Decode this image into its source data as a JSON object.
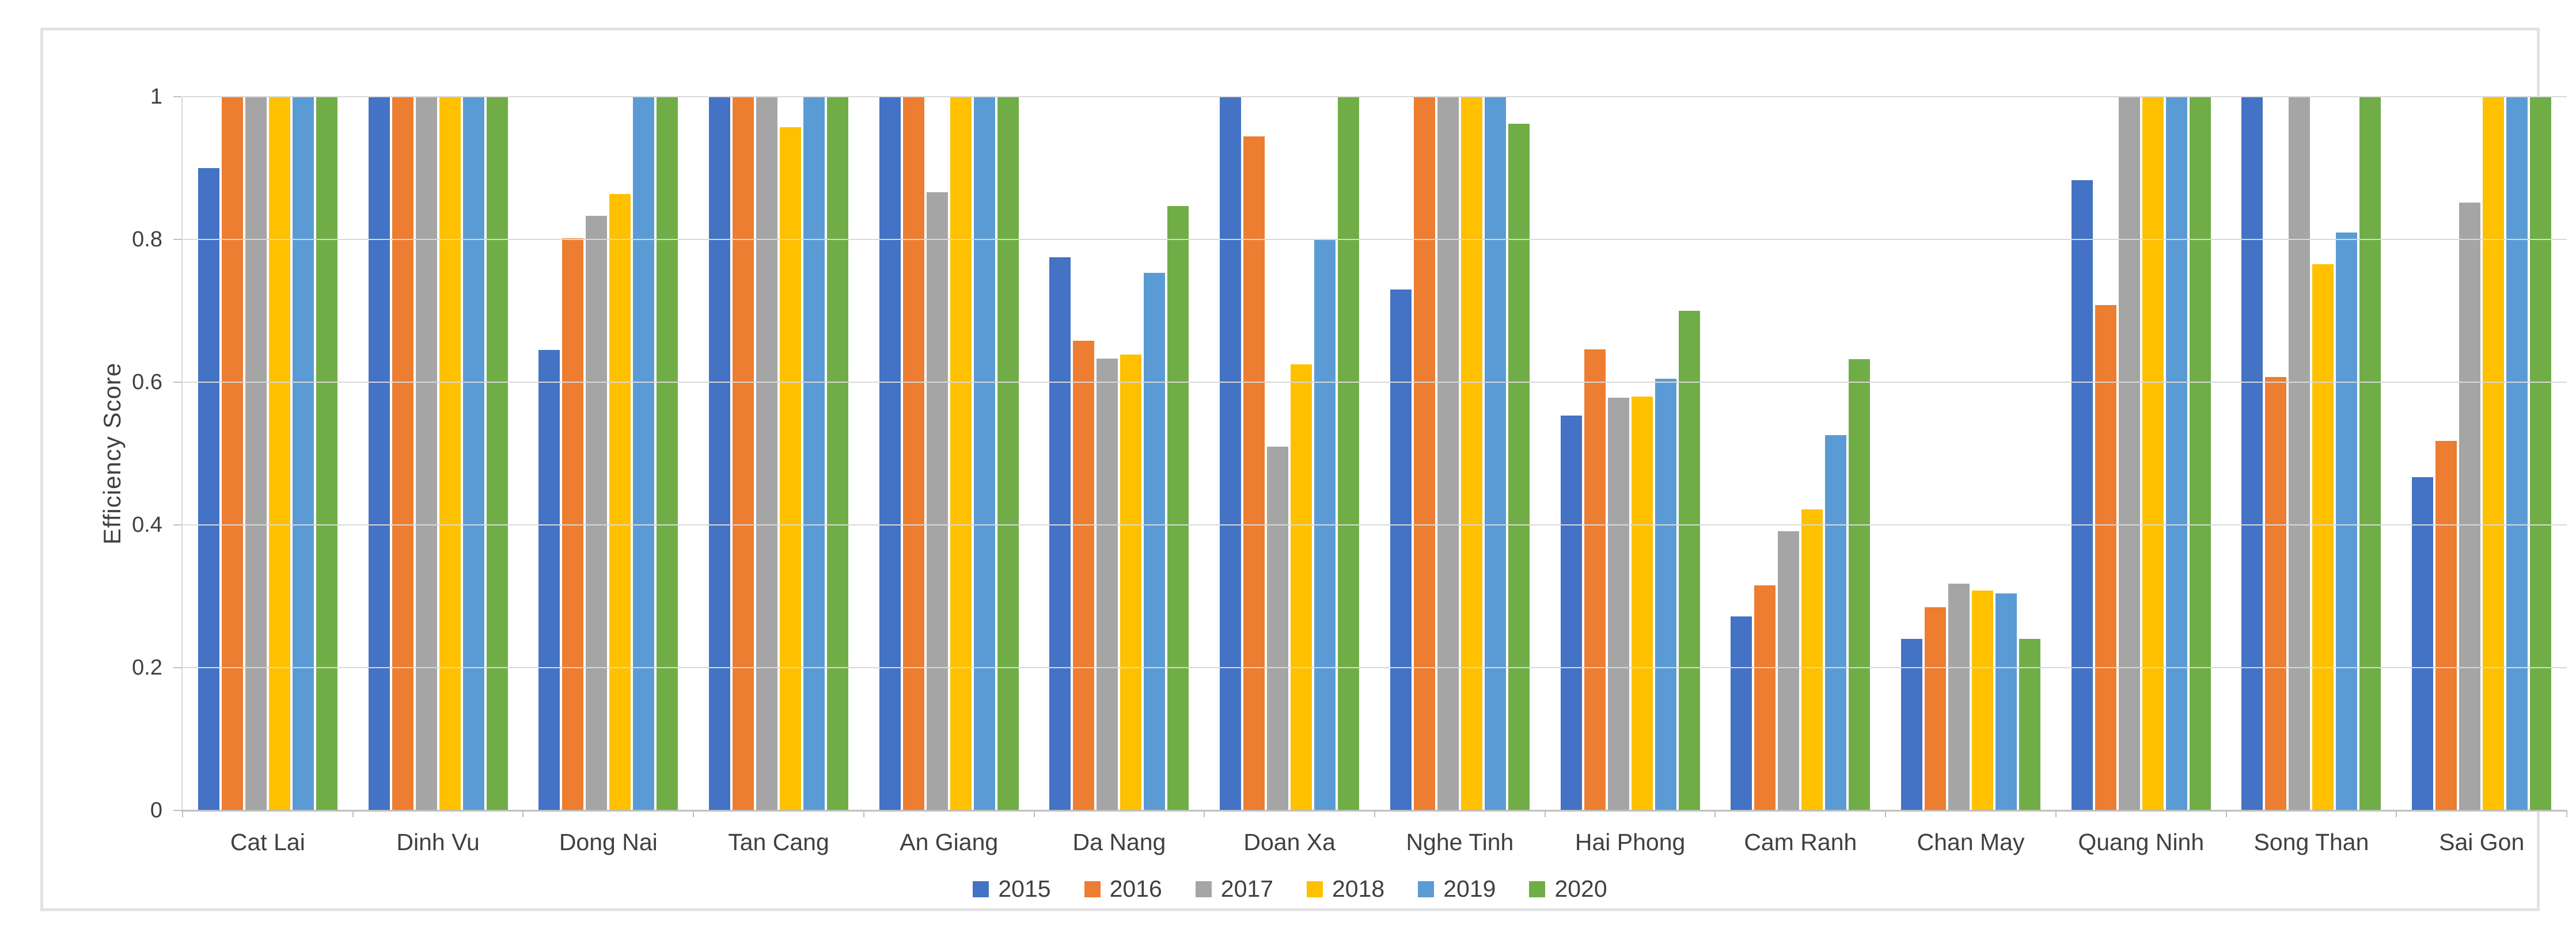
{
  "y_axis": {
    "title": "Efficiency Score",
    "tick_labels": [
      "1",
      "0.8",
      "0.6",
      "0.4",
      "0.2",
      "0"
    ],
    "tick_values": [
      1,
      0.8,
      0.6,
      0.4,
      0.2,
      0
    ]
  },
  "chart_data": {
    "type": "bar",
    "title": "",
    "xlabel": "",
    "ylabel": "Efficiency Score",
    "ylim": [
      0,
      1
    ],
    "grid": true,
    "legend_position": "bottom",
    "categories": [
      "Cat Lai",
      "Dinh Vu",
      "Dong Nai",
      "Tan Cang",
      "An Giang",
      "Da Nang",
      "Doan Xa",
      "Nghe Tinh",
      "Hai Phong",
      "Cam Ranh",
      "Chan May",
      "Quang Ninh",
      "Song Than",
      "Sai Gon"
    ],
    "series": [
      {
        "name": "2015",
        "color": "#4472C4",
        "values": [
          0.9,
          1.0,
          0.645,
          1.0,
          1.0,
          0.775,
          1.0,
          0.73,
          0.553,
          0.272,
          0.24,
          0.883,
          1.0,
          0.467
        ]
      },
      {
        "name": "2016",
        "color": "#ED7D31",
        "values": [
          1.0,
          1.0,
          0.802,
          1.0,
          1.0,
          0.658,
          0.944,
          1.0,
          0.646,
          0.315,
          0.285,
          0.708,
          0.607,
          0.518
        ]
      },
      {
        "name": "2017",
        "color": "#A5A5A5",
        "values": [
          1.0,
          1.0,
          0.833,
          1.0,
          0.866,
          0.633,
          0.51,
          1.0,
          0.578,
          0.391,
          0.318,
          1.0,
          1.0,
          0.852
        ]
      },
      {
        "name": "2018",
        "color": "#FFC000",
        "values": [
          1.0,
          1.0,
          0.864,
          0.957,
          1.0,
          0.639,
          0.625,
          1.0,
          0.58,
          0.422,
          0.308,
          1.0,
          0.765,
          1.0
        ]
      },
      {
        "name": "2019",
        "color": "#5B9BD5",
        "values": [
          1.0,
          1.0,
          1.0,
          1.0,
          1.0,
          0.753,
          0.8,
          1.0,
          0.605,
          0.526,
          0.304,
          1.0,
          0.81,
          1.0
        ]
      },
      {
        "name": "2020",
        "color": "#70AD47",
        "values": [
          1.0,
          1.0,
          1.0,
          1.0,
          1.0,
          0.847,
          1.0,
          0.962,
          0.7,
          0.632,
          0.24,
          1.0,
          1.0,
          1.0
        ]
      }
    ]
  },
  "style": {
    "gridline_color": "#d9d9d9",
    "axis_color": "#bfbfbf",
    "text_color": "#404040",
    "background": "#ffffff",
    "frame_border_color": "#e2e2e4"
  }
}
